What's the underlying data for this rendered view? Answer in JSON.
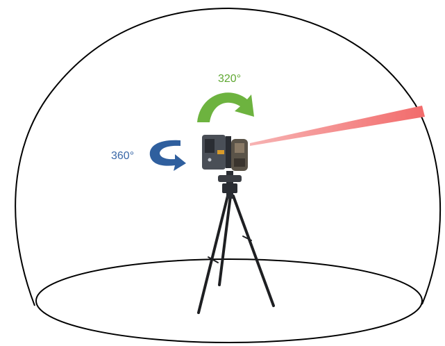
{
  "labels": {
    "vertical_rotation": "320°",
    "horizontal_rotation": "360°"
  },
  "colors": {
    "background": "#ffffff",
    "outline": "#000000",
    "vertical_arrow": "#6db33f",
    "vertical_label": "#5fa832",
    "horizontal_arrow": "#2f5f9e",
    "horizontal_label": "#3a68a8",
    "laser_beam": "#f26b6b",
    "scanner_body": "#4a4f57",
    "scanner_dark": "#2a2d33",
    "tripod": "#1e1f22"
  },
  "icons": {
    "vertical_arrow": "curved-arrow-clockwise-icon",
    "horizontal_arrow": "curved-arrow-rotate-icon",
    "device": "laser-scanner-icon"
  }
}
